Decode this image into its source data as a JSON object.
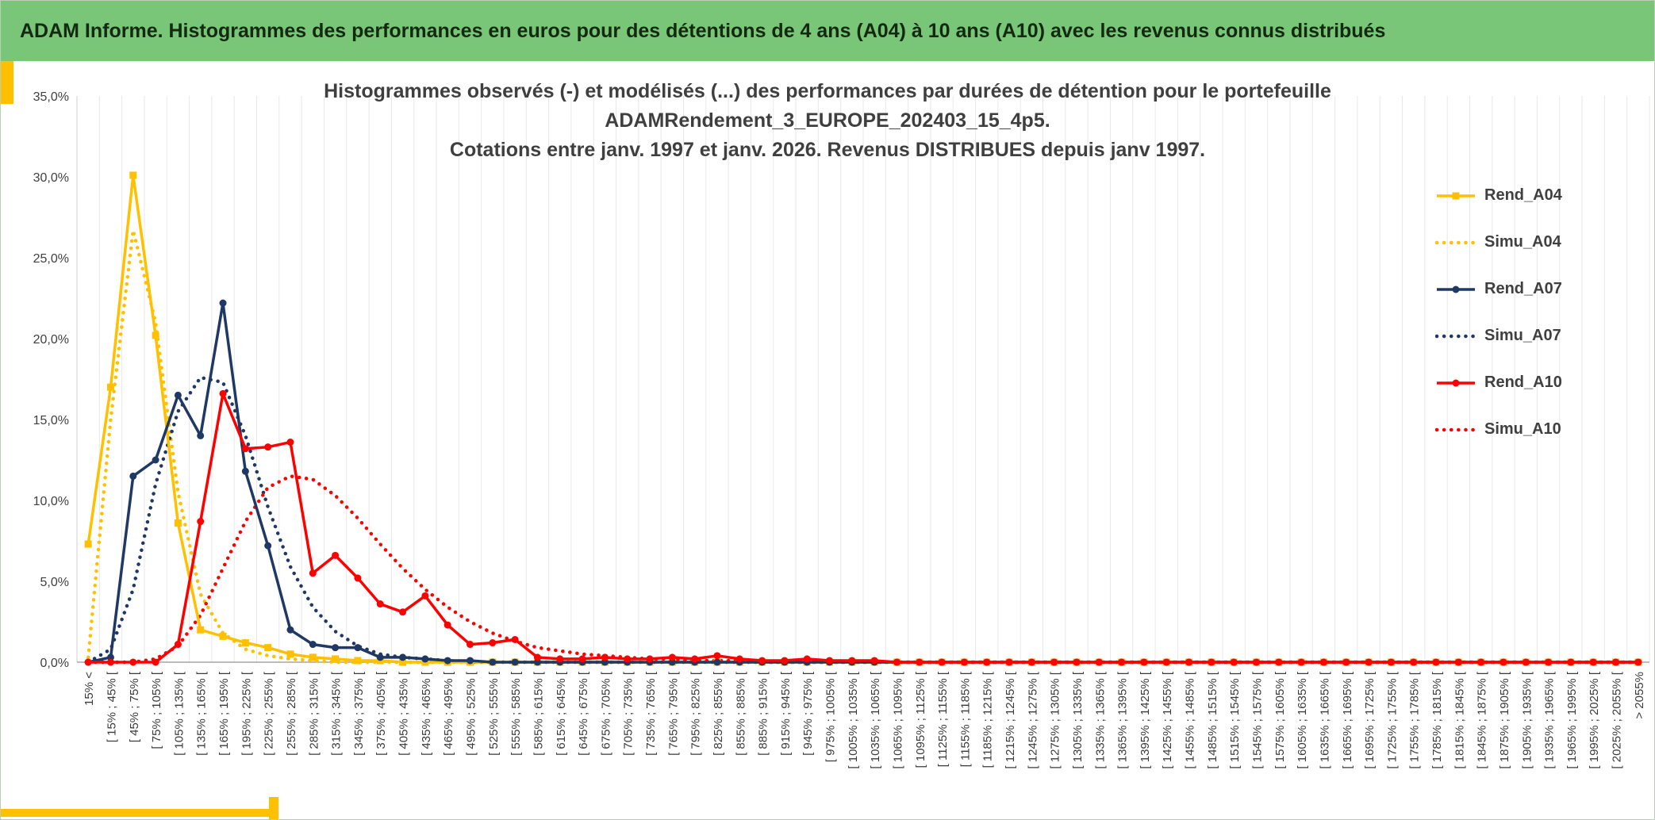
{
  "header": {
    "title": "ADAM Informe. Histogrammes des performances en euros pour des détentions de 4 ans (A04) à 10 ans (A10) avec les revenus connus distribués"
  },
  "chart": {
    "title_lines": [
      "Histogrammes observés (-) et modélisés (...) des performances par durées de détention pour le portefeuille",
      "ADAMRendement_3_EUROPE_202403_15_4p5.",
      "Cotations entre janv. 1997 et janv. 2026. Revenus DISTRIBUES depuis janv 1997."
    ]
  },
  "accent_colors": {
    "header_bg": "#79C679",
    "accent_yellow": "#FFC000",
    "series_gold": "#FFC000",
    "series_navy": "#1F3864",
    "series_red": "#FF0000"
  },
  "chart_data": {
    "type": "line",
    "title": "Histogrammes observés (-) et modélisés (...) des performances par durées de détention pour le portefeuille ADAMRendement_3_EUROPE_202403_15_4p5. Cotations entre janv. 1997 et janv. 2026. Revenus DISTRIBUES depuis janv 1997.",
    "xlabel": "",
    "ylabel": "",
    "ylim": [
      0,
      35
    ],
    "yticks": [
      0,
      5,
      10,
      15,
      20,
      25,
      30,
      35
    ],
    "ytick_labels": [
      "0,0%",
      "5,0%",
      "10,0%",
      "15,0%",
      "20,0%",
      "25,0%",
      "30,0%",
      "35,0%"
    ],
    "grid": "vertical",
    "legend_position": "right",
    "categories": [
      "15%  <",
      "[ 15% ; 45% [",
      "[ 45% ; 75% [",
      "[ 75% ; 105% [",
      "[ 105% ; 135% [",
      "[ 135% ; 165% [",
      "[ 165% ; 195% [",
      "[ 195% ; 225% [",
      "[ 225% ; 255% [",
      "[ 255% ; 285% [",
      "[ 285% ; 315% [",
      "[ 315% ; 345% [",
      "[ 345% ; 375% [",
      "[ 375% ; 405% [",
      "[ 405% ; 435% [",
      "[ 435% ; 465% [",
      "[ 465% ; 495% [",
      "[ 495% ; 525% [",
      "[ 525% ; 555% [",
      "[ 555% ; 585% [",
      "[ 585% ; 615% [",
      "[ 615% ; 645% [",
      "[ 645% ; 675% [",
      "[ 675% ; 705% [",
      "[ 705% ; 735% [",
      "[ 735% ; 765% [",
      "[ 765% ; 795% [",
      "[ 795% ; 825% [",
      "[ 825% ; 855% [",
      "[ 855% ; 885% [",
      "[ 885% ; 915% [",
      "[ 915% ; 945% [",
      "[ 945% ; 975% [",
      "[ 975% ; 1005% [",
      "[ 1005% ; 1035% [",
      "[ 1035% ; 1065% [",
      "[ 1065% ; 1095% [",
      "[ 1095% ; 1125% [",
      "[ 1125% ; 1155% [",
      "[ 1155% ; 1185% [",
      "[ 1185% ; 1215% [",
      "[ 1215% ; 1245% [",
      "[ 1245% ; 1275% [",
      "[ 1275% ; 1305% [",
      "[ 1305% ; 1335% [",
      "[ 1335% ; 1365% [",
      "[ 1365% ; 1395% [",
      "[ 1395% ; 1425% [",
      "[ 1425% ; 1455% [",
      "[ 1455% ; 1485% [",
      "[ 1485% ; 1515% [",
      "[ 1515% ; 1545% [",
      "[ 1545% ; 1575% [",
      "[ 1575% ; 1605% [",
      "[ 1605% ; 1635% [",
      "[ 1635% ; 1665% [",
      "[ 1665% ; 1695% [",
      "[ 1695% ; 1725% [",
      "[ 1725% ; 1755% [",
      "[ 1755% ; 1785% [",
      "[ 1785% ; 1815% [",
      "[ 1815% ; 1845% [",
      "[ 1845% ; 1875% [",
      "[ 1875% ; 1905% [",
      "[ 1905% ; 1935% [",
      "[ 1935% ; 1965% [",
      "[ 1965% ; 1995% [",
      "[ 1995% ; 2025% [",
      "[ 2025% ; 2055% [",
      "> 2055%"
    ],
    "series": [
      {
        "name": "Rend_A04",
        "color": "#FFC000",
        "style": "solid",
        "marker": "square",
        "values": [
          7.3,
          17,
          30.1,
          20.2,
          8.6,
          2,
          1.6,
          1.2,
          0.9,
          0.5,
          0.3,
          0.2,
          0.1,
          0.1,
          0,
          0,
          0,
          0,
          0,
          0,
          0,
          0,
          0,
          0,
          0,
          0,
          0,
          0,
          0,
          0,
          0,
          0,
          0,
          0,
          0,
          0,
          0,
          0,
          0,
          0,
          0,
          0,
          0,
          0,
          0,
          0,
          0,
          0,
          0,
          0,
          0,
          0,
          0,
          0,
          0,
          0,
          0,
          0,
          0,
          0,
          0,
          0,
          0,
          0,
          0,
          0,
          0,
          0,
          0,
          0
        ]
      },
      {
        "name": "Simu_A04",
        "color": "#FFC000",
        "style": "dotted",
        "marker": "none",
        "values": [
          0.3,
          15,
          26.7,
          21,
          10.5,
          4.2,
          1.8,
          0.8,
          0.4,
          0.2,
          0.1,
          0,
          0,
          0,
          0,
          0,
          0,
          0,
          0,
          0,
          0,
          0,
          0,
          0,
          0,
          0,
          0,
          0,
          0,
          0,
          0,
          0,
          0,
          0,
          0,
          0,
          0,
          0,
          0,
          0,
          0,
          0,
          0,
          0,
          0,
          0,
          0,
          0,
          0,
          0,
          0,
          0,
          0,
          0,
          0,
          0,
          0,
          0,
          0,
          0,
          0,
          0,
          0,
          0,
          0,
          0,
          0,
          0,
          0,
          0
        ]
      },
      {
        "name": "Rend_A07",
        "color": "#1F3864",
        "style": "solid",
        "marker": "circle",
        "values": [
          0,
          0.3,
          11.5,
          12.5,
          16.5,
          14,
          22.2,
          11.8,
          7.2,
          2,
          1.1,
          0.9,
          0.9,
          0.3,
          0.3,
          0.2,
          0.1,
          0.1,
          0,
          0,
          0,
          0,
          0,
          0,
          0,
          0,
          0,
          0,
          0,
          0,
          0,
          0,
          0,
          0,
          0,
          0,
          0,
          0,
          0,
          0,
          0,
          0,
          0,
          0,
          0,
          0,
          0,
          0,
          0,
          0,
          0,
          0,
          0,
          0,
          0,
          0,
          0,
          0,
          0,
          0,
          0,
          0,
          0,
          0,
          0,
          0,
          0,
          0,
          0,
          0
        ]
      },
      {
        "name": "Simu_A07",
        "color": "#1F3864",
        "style": "dotted",
        "marker": "none",
        "values": [
          0,
          0.8,
          4.5,
          11,
          15.5,
          17.6,
          17.3,
          14,
          9.6,
          5.9,
          3.4,
          1.9,
          1,
          0.5,
          0.3,
          0.2,
          0.1,
          0,
          0,
          0,
          0,
          0,
          0,
          0,
          0,
          0,
          0,
          0,
          0,
          0,
          0,
          0,
          0,
          0,
          0,
          0,
          0,
          0,
          0,
          0,
          0,
          0,
          0,
          0,
          0,
          0,
          0,
          0,
          0,
          0,
          0,
          0,
          0,
          0,
          0,
          0,
          0,
          0,
          0,
          0,
          0,
          0,
          0,
          0,
          0,
          0,
          0,
          0,
          0,
          0
        ]
      },
      {
        "name": "Rend_A10",
        "color": "#FF0000",
        "style": "solid",
        "marker": "circle",
        "values": [
          0,
          0,
          0,
          0,
          1.1,
          8.7,
          16.6,
          13.2,
          13.3,
          13.6,
          5.5,
          6.6,
          5.2,
          3.6,
          3.1,
          4.1,
          2.3,
          1.1,
          1.2,
          1.4,
          0.3,
          0.2,
          0.2,
          0.3,
          0.2,
          0.2,
          0.3,
          0.2,
          0.4,
          0.2,
          0.1,
          0.1,
          0.2,
          0.1,
          0.1,
          0.1,
          0,
          0,
          0,
          0,
          0,
          0,
          0,
          0,
          0,
          0,
          0,
          0,
          0,
          0,
          0,
          0,
          0,
          0,
          0,
          0,
          0,
          0,
          0,
          0,
          0,
          0,
          0,
          0,
          0,
          0,
          0,
          0,
          0,
          0
        ]
      },
      {
        "name": "Simu_A10",
        "color": "#FF0000",
        "style": "dotted",
        "marker": "none",
        "values": [
          0,
          0,
          0,
          0.2,
          1,
          2.9,
          5.8,
          8.7,
          10.8,
          11.5,
          11.3,
          10.3,
          8.9,
          7.3,
          5.8,
          4.5,
          3.4,
          2.5,
          1.8,
          1.3,
          0.9,
          0.7,
          0.5,
          0.4,
          0.3,
          0.2,
          0.2,
          0.1,
          0.1,
          0.1,
          0,
          0,
          0,
          0,
          0,
          0,
          0,
          0,
          0,
          0,
          0,
          0,
          0,
          0,
          0,
          0,
          0,
          0,
          0,
          0,
          0,
          0,
          0,
          0,
          0,
          0,
          0,
          0,
          0,
          0,
          0,
          0,
          0,
          0,
          0,
          0,
          0,
          0,
          0,
          0
        ]
      }
    ]
  }
}
